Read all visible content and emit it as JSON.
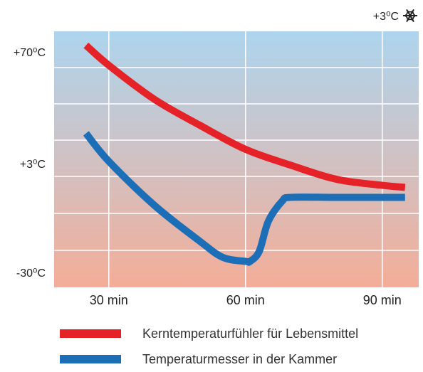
{
  "chart_data": {
    "type": "line",
    "top_label": "+3⁰C",
    "top_icon": "snowflake-icon",
    "y_tick_labels": [
      "+70⁰C",
      "+3⁰C",
      "-30⁰C"
    ],
    "x": [
      "30 min",
      "60 min",
      "90 min"
    ],
    "grid": true,
    "background_gradient": [
      "#add5ee",
      "#f4ad98"
    ],
    "series": [
      {
        "name": "Kerntemperaturfühler für Lebensmittel",
        "color": "#e52227",
        "points": [
          [
            25,
            78
          ],
          [
            30,
            68
          ],
          [
            40,
            51
          ],
          [
            50,
            38
          ],
          [
            60,
            26
          ],
          [
            70,
            18
          ],
          [
            80,
            11
          ],
          [
            90,
            8
          ],
          [
            95,
            7
          ]
        ]
      },
      {
        "name": "Temperaturmesser in der Kammer",
        "color": "#1c6fb7",
        "points": [
          [
            25,
            34
          ],
          [
            30,
            20
          ],
          [
            40,
            -2
          ],
          [
            50,
            -20
          ],
          [
            55,
            -28
          ],
          [
            60,
            -30
          ],
          [
            61,
            -30
          ],
          [
            63,
            -25
          ],
          [
            65,
            -10
          ],
          [
            68,
            0
          ],
          [
            70,
            2
          ],
          [
            80,
            2
          ],
          [
            95,
            2
          ]
        ]
      }
    ],
    "legend_position": "bottom"
  }
}
